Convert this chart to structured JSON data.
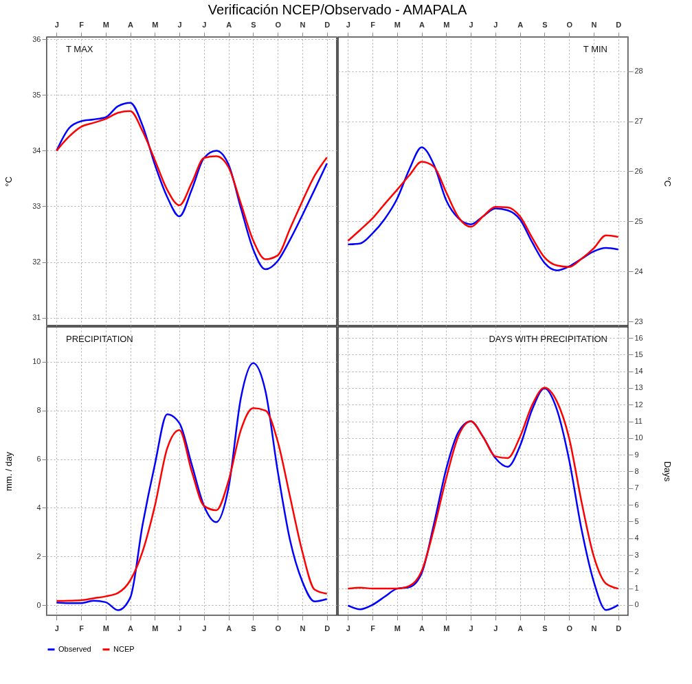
{
  "chart_data": [
    {
      "type": "line",
      "title": "T MAX",
      "legend": "bottom",
      "annotations": [
        "Verificación NCEP/Observado - AMAPALA"
      ],
      "ylabel": "°C",
      "categories": [
        "J",
        null,
        "F",
        null,
        "M",
        null,
        "A",
        null,
        "M",
        null,
        "J",
        null,
        "J",
        null,
        "A",
        null,
        "S",
        null,
        "O",
        null,
        "N",
        null,
        "D"
      ],
      "ylim": [
        30.86,
        36.04
      ],
      "yticks": [
        31,
        32,
        33,
        34,
        35,
        36
      ],
      "grid": true,
      "series": [
        {
          "name": "Observed",
          "color": "#0000ff",
          "values": [
            34.0,
            34.4,
            34.53,
            34.56,
            34.6,
            34.8,
            34.86,
            34.45,
            33.75,
            33.17,
            32.82,
            33.3,
            33.87,
            34.0,
            33.75,
            32.97,
            32.23,
            31.87,
            32.02,
            32.4,
            32.84,
            33.3,
            33.77
          ]
        },
        {
          "name": "NCEP",
          "color": "#ff0000",
          "values": [
            34.0,
            34.25,
            34.43,
            34.5,
            34.57,
            34.68,
            34.71,
            34.35,
            33.83,
            33.3,
            33.02,
            33.42,
            33.87,
            33.9,
            33.7,
            33.05,
            32.39,
            32.05,
            32.12,
            32.6,
            33.09,
            33.55,
            33.88
          ]
        }
      ]
    },
    {
      "type": "line",
      "title": "T MIN",
      "ylabel": "°C",
      "categories": [
        "J",
        null,
        "F",
        null,
        "M",
        null,
        "A",
        null,
        "M",
        null,
        "J",
        null,
        "J",
        null,
        "A",
        null,
        "S",
        null,
        "O",
        null,
        "N",
        null,
        "D"
      ],
      "ylim": [
        22.92,
        28.68
      ],
      "yticks": [
        23,
        24,
        25,
        26,
        27,
        28
      ],
      "grid": true,
      "series": [
        {
          "name": "Observed",
          "color": "#0000ff",
          "values": [
            24.54,
            24.56,
            24.76,
            25.05,
            25.45,
            26.04,
            26.48,
            26.13,
            25.42,
            25.06,
            24.94,
            25.1,
            25.26,
            25.22,
            25.04,
            24.58,
            24.17,
            24.02,
            24.1,
            24.25,
            24.4,
            24.47,
            24.44
          ]
        },
        {
          "name": "NCEP",
          "color": "#ff0000",
          "values": [
            24.61,
            24.83,
            25.06,
            25.35,
            25.63,
            25.92,
            26.19,
            26.09,
            25.58,
            25.08,
            24.89,
            25.1,
            25.29,
            25.28,
            25.1,
            24.67,
            24.28,
            24.12,
            24.09,
            24.25,
            24.46,
            24.72,
            24.69
          ]
        }
      ]
    },
    {
      "type": "line",
      "title": "PRECIPITATION",
      "ylabel": "mm. / day",
      "categories": [
        "J",
        null,
        "F",
        null,
        "M",
        null,
        "A",
        null,
        "M",
        null,
        "J",
        null,
        "J",
        null,
        "A",
        null,
        "S",
        null,
        "O",
        null,
        "N",
        null,
        "D"
      ],
      "ylim": [
        -0.42,
        11.44
      ],
      "yticks": [
        0,
        2,
        4,
        6,
        8,
        10
      ],
      "grid": true,
      "series": [
        {
          "name": "Observed",
          "color": "#0000ff",
          "values": [
            0.1,
            0.08,
            0.08,
            0.18,
            0.12,
            -0.21,
            0.31,
            3.3,
            5.78,
            7.85,
            7.48,
            5.78,
            4.08,
            3.41,
            4.84,
            8.52,
            9.95,
            8.8,
            5.5,
            2.67,
            0.97,
            0.15,
            0.25
          ]
        },
        {
          "name": "NCEP",
          "color": "#ff0000",
          "values": [
            0.17,
            0.18,
            0.2,
            0.28,
            0.36,
            0.5,
            1.02,
            2.2,
            4.08,
            6.44,
            7.2,
            5.5,
            4.08,
            3.9,
            5.12,
            7.2,
            8.1,
            8.0,
            6.73,
            4.46,
            2.2,
            0.64,
            0.47
          ]
        }
      ]
    },
    {
      "type": "line",
      "title": "DAYS WITH PRECIPITATION",
      "ylabel": "Days",
      "categories": [
        "J",
        null,
        "F",
        null,
        "M",
        null,
        "A",
        null,
        "M",
        null,
        "J",
        null,
        "J",
        null,
        "A",
        null,
        "S",
        null,
        "O",
        null,
        "N",
        null,
        "D"
      ],
      "ylim": [
        -0.62,
        16.66
      ],
      "yticks": [
        0,
        1,
        2,
        3,
        4,
        5,
        6,
        7,
        8,
        9,
        10,
        11,
        12,
        13,
        14,
        15,
        16
      ],
      "grid": true,
      "series": [
        {
          "name": "Observed",
          "color": "#0000ff",
          "values": [
            -0.03,
            -0.26,
            0.01,
            0.5,
            0.98,
            1.07,
            1.9,
            4.85,
            8.15,
            10.37,
            11.0,
            10.07,
            8.8,
            8.28,
            9.52,
            11.72,
            12.98,
            11.72,
            8.7,
            4.57,
            1.41,
            -0.3,
            0.0
          ]
        },
        {
          "name": "NCEP",
          "color": "#ff0000",
          "values": [
            0.98,
            1.04,
            0.98,
            0.98,
            0.98,
            1.14,
            2.03,
            4.57,
            7.6,
            10.14,
            11.0,
            10.07,
            8.9,
            8.8,
            10.07,
            11.99,
            13.02,
            12.2,
            10.0,
            6.22,
            2.93,
            1.28,
            0.98
          ]
        }
      ]
    }
  ]
}
